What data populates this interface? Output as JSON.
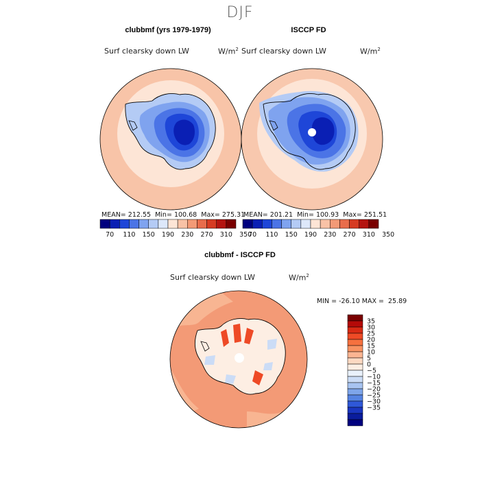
{
  "title": "DJF",
  "panels": {
    "left": {
      "title": "clubbmf (yrs 1979-1979)",
      "variable": "Surf clearsky down LW",
      "units_base": "W/m",
      "units_exp": "2",
      "mean_label": "MEAN=",
      "mean": "212.55",
      "min_label": "Min=",
      "min": "100.68",
      "max_label": "Max=",
      "max": "275.31"
    },
    "right": {
      "title": "ISCCP FD",
      "variable": "Surf clearsky down LW",
      "units_base": "W/m",
      "units_exp": "2",
      "mean_label": "MEAN=",
      "mean": "201.21",
      "min_label": "Min=",
      "min": "100.93",
      "max_label": "Max=",
      "max": "251.51"
    },
    "diff": {
      "title": "clubbmf - ISCCP FD",
      "variable": "Surf clearsky down LW",
      "units_base": "W/m",
      "units_exp": "2",
      "min_label": "MIN =",
      "min": "-26.10",
      "max_label": "MAX =",
      "max": "25.89"
    }
  },
  "colorbar_top": {
    "colors": [
      "#00007f",
      "#0a1fb4",
      "#1e46d8",
      "#4b74e6",
      "#7fa3ef",
      "#b4cbf5",
      "#dde8fa",
      "#fde5d6",
      "#f8c2a6",
      "#f39a76",
      "#e86c4b",
      "#d63b22",
      "#b41410",
      "#7a0000"
    ],
    "labels": [
      "70",
      "110",
      "150",
      "190",
      "230",
      "270",
      "310",
      "350"
    ]
  },
  "colorbar_diff": {
    "colors": [
      "#7a0000",
      "#b40a08",
      "#d82a14",
      "#ee4a26",
      "#f6713f",
      "#f99362",
      "#fbb592",
      "#fdd9c2",
      "#fdeee3",
      "#e9f1fb",
      "#cbdcf6",
      "#a8c4f1",
      "#7ea5ea",
      "#5583e2",
      "#2f58d8",
      "#1a36c0",
      "#0a1c9c",
      "#00007f"
    ],
    "labels": [
      "35",
      "30",
      "25",
      "20",
      "15",
      "10",
      "5",
      "0",
      "−5",
      "−10",
      "−15",
      "−20",
      "−25",
      "−30",
      "−35"
    ]
  },
  "map_colors": {
    "ocean_left": "#f8c4a8",
    "ocean_left_mid": "#fde5d6",
    "ocean_right": "#f8c8ae",
    "ocean_right_mid": "#fde5d6",
    "antarctica_1": "#b4cbf5",
    "antarctica_2": "#7fa3ef",
    "antarctica_3": "#4b74e6",
    "antarctica_4": "#1e46d8",
    "antarctica_5": "#0a1fb4",
    "diff_ocean": "#f39a76",
    "diff_ocean_light": "#f8b592",
    "diff_land": "#fdeee3",
    "diff_land_blue": "#cbdcf6",
    "diff_red": "#ee4a26"
  }
}
